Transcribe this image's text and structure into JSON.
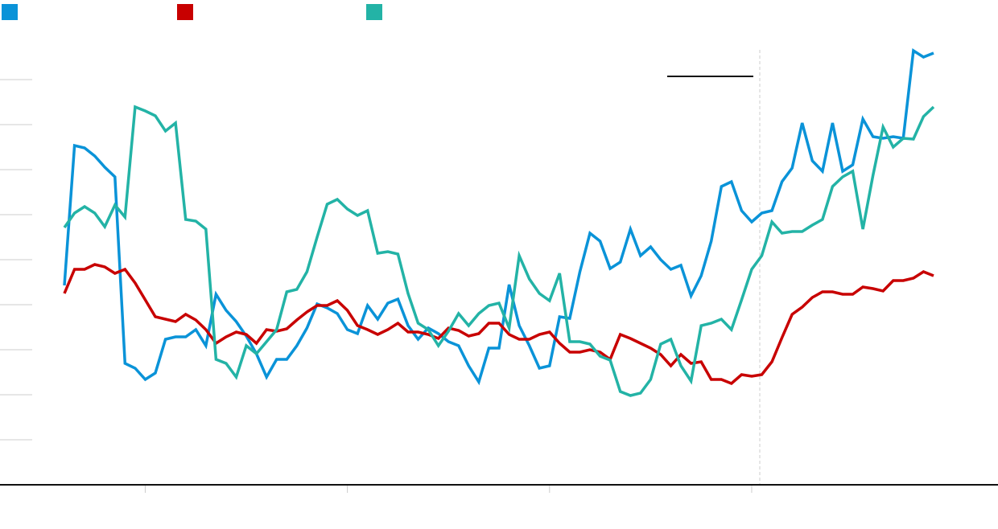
{
  "chart_data": {
    "type": "line",
    "x": [
      0,
      1,
      2,
      3,
      4,
      5,
      6,
      7,
      8,
      9,
      10,
      11,
      12,
      13,
      14,
      15,
      16,
      17,
      18,
      19,
      20,
      21,
      22,
      23,
      24,
      25,
      26,
      27,
      28,
      29,
      30,
      31,
      32,
      33,
      34,
      35,
      36,
      37,
      38,
      39,
      40,
      41,
      42,
      43,
      44,
      45,
      46,
      47,
      48,
      49,
      50,
      51,
      52,
      53,
      54,
      55,
      56,
      57,
      58,
      59,
      60,
      61,
      62,
      63,
      64,
      65,
      66,
      67,
      68,
      69,
      70,
      71,
      72,
      73,
      74,
      75,
      76,
      77,
      78,
      79,
      80,
      81,
      82,
      83,
      84,
      85,
      86
    ],
    "series": [
      {
        "color": "#0a93d8",
        "values": [
          248,
          422,
          419,
          409,
          395,
          383,
          151,
          145,
          131,
          139,
          181,
          184,
          184,
          193,
          173,
          237,
          217,
          203,
          185,
          163,
          134,
          156,
          156,
          173,
          195,
          225,
          220,
          213,
          193,
          188,
          223,
          206,
          226,
          231,
          198,
          181,
          195,
          188,
          178,
          173,
          148,
          128,
          170,
          170,
          249,
          198,
          173,
          145,
          148,
          209,
          207,
          265,
          313,
          303,
          269,
          277,
          318,
          285,
          296,
          280,
          268,
          273,
          235,
          260,
          303,
          371,
          377,
          341,
          327,
          338,
          341,
          377,
          394,
          450,
          403,
          390,
          450,
          390,
          398,
          455,
          433,
          431,
          433,
          431,
          540,
          532,
          537
        ]
      },
      {
        "color": "#c80000",
        "values": [
          238,
          268,
          268,
          274,
          271,
          263,
          268,
          251,
          230,
          209,
          206,
          203,
          212,
          205,
          193,
          176,
          184,
          190,
          187,
          176,
          193,
          191,
          194,
          205,
          215,
          223,
          223,
          229,
          217,
          198,
          193,
          187,
          193,
          201,
          190,
          190,
          187,
          182,
          195,
          192,
          185,
          188,
          201,
          201,
          187,
          181,
          181,
          187,
          190,
          176,
          165,
          165,
          168,
          165,
          156,
          187,
          182,
          176,
          170,
          162,
          148,
          162,
          151,
          153,
          131,
          131,
          126,
          137,
          135,
          137,
          153,
          183,
          212,
          221,
          233,
          240,
          240,
          237,
          237,
          246,
          244,
          241,
          254,
          254,
          257,
          265,
          260
        ]
      },
      {
        "color": "#23b3a6",
        "values": [
          320,
          338,
          346,
          338,
          321,
          348,
          333,
          470,
          465,
          459,
          440,
          450,
          330,
          328,
          318,
          156,
          151,
          134,
          173,
          163,
          178,
          193,
          240,
          243,
          265,
          308,
          349,
          355,
          343,
          335,
          341,
          288,
          290,
          287,
          238,
          201,
          193,
          173,
          191,
          213,
          198,
          213,
          223,
          226,
          195,
          285,
          256,
          238,
          229,
          263,
          178,
          178,
          175,
          160,
          155,
          116,
          111,
          114,
          131,
          175,
          181,
          148,
          129,
          198,
          201,
          206,
          193,
          230,
          268,
          285,
          327,
          313,
          315,
          315,
          323,
          330,
          371,
          383,
          390,
          318,
          385,
          445,
          420,
          431,
          430,
          458,
          470
        ]
      }
    ],
    "xlim": [
      -6.37,
      92.37
    ],
    "xticks": [
      8,
      28,
      48,
      68
    ],
    "ylim": [
      0,
      603
    ],
    "yticks": [
      56,
      112,
      168,
      224,
      280,
      336,
      392,
      448,
      504
    ],
    "vline": 68.8,
    "grid": true
  }
}
